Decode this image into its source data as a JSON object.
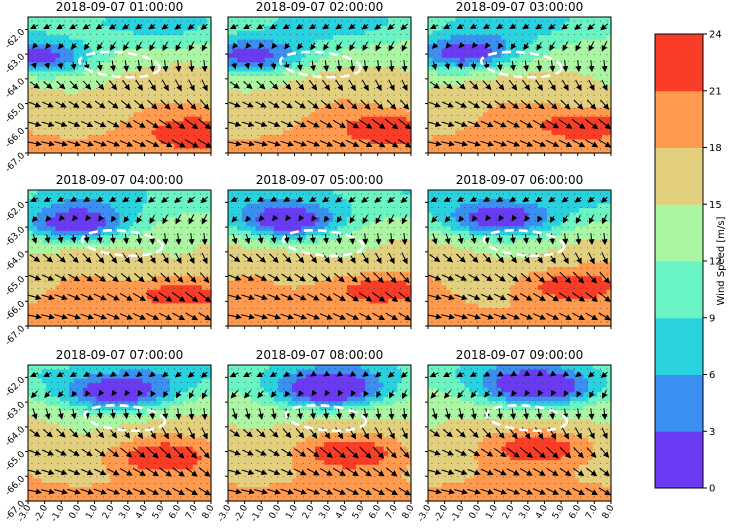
{
  "chart_data": {
    "type": "contour",
    "panels": [
      {
        "title": "2018-09-07 01:00:00",
        "show_y_ticks": true,
        "show_x_ticks": false
      },
      {
        "title": "2018-09-07 02:00:00",
        "show_y_ticks": false,
        "show_x_ticks": false
      },
      {
        "title": "2018-09-07 03:00:00",
        "show_y_ticks": false,
        "show_x_ticks": false
      },
      {
        "title": "2018-09-07 04:00:00",
        "show_y_ticks": true,
        "show_x_ticks": false
      },
      {
        "title": "2018-09-07 05:00:00",
        "show_y_ticks": false,
        "show_x_ticks": false
      },
      {
        "title": "2018-09-07 06:00:00",
        "show_y_ticks": false,
        "show_x_ticks": false
      },
      {
        "title": "2018-09-07 07:00:00",
        "show_y_ticks": true,
        "show_x_ticks": true
      },
      {
        "title": "2018-09-07 08:00:00",
        "show_y_ticks": false,
        "show_x_ticks": true
      },
      {
        "title": "2018-09-07 09:00:00",
        "show_y_ticks": false,
        "show_x_ticks": true
      }
    ],
    "x_range": [
      -3.0,
      8.0
    ],
    "x_ticks": [
      "-3.0",
      "-2.0",
      "-1.0",
      "0.0",
      "1.0",
      "2.0",
      "3.0",
      "4.0",
      "5.0",
      "6.0",
      "7.0",
      "8.0"
    ],
    "y_range": [
      -67.0,
      -61.5
    ],
    "y_ticks": [
      "-62.0",
      "-63.0",
      "-64.0",
      "-65.0",
      "-66.0",
      "-67.0"
    ],
    "colorbar": {
      "label": "Wind Speed [m/s]",
      "ticks": [
        "0",
        "3",
        "6",
        "9",
        "12",
        "15",
        "18",
        "21",
        "24"
      ],
      "levels": [
        0,
        3,
        6,
        9,
        12,
        15,
        18,
        21,
        24
      ],
      "colors": [
        "#6a3bf3",
        "#3a8ff1",
        "#2ad2e0",
        "#6bf4c3",
        "#aaf6a3",
        "#e2d07f",
        "#ff9a4e",
        "#fa3d26"
      ]
    }
  }
}
